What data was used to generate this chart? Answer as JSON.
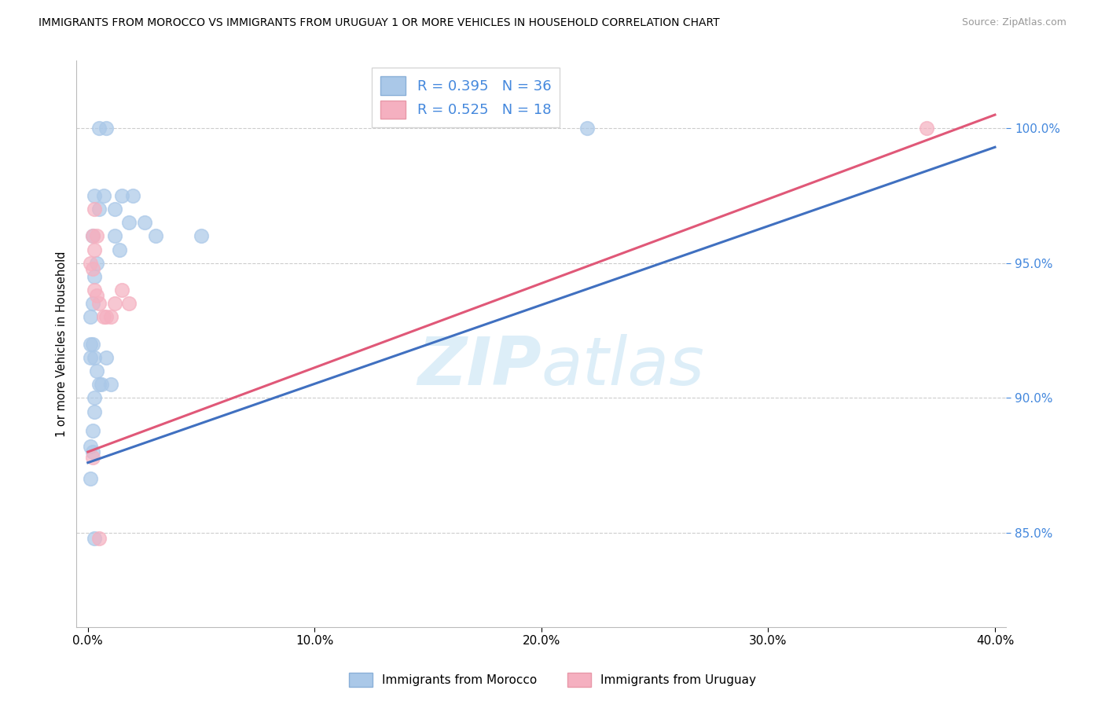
{
  "title": "IMMIGRANTS FROM MOROCCO VS IMMIGRANTS FROM URUGUAY 1 OR MORE VEHICLES IN HOUSEHOLD CORRELATION CHART",
  "source": "Source: ZipAtlas.com",
  "xlabel_ticks": [
    "0.0%",
    "10.0%",
    "20.0%",
    "30.0%",
    "40.0%"
  ],
  "xlabel_tick_vals": [
    0.0,
    0.1,
    0.2,
    0.3,
    0.4
  ],
  "ylabel": "1 or more Vehicles in Household",
  "ylabel_ticks": [
    "85.0%",
    "90.0%",
    "95.0%",
    "100.0%"
  ],
  "ylabel_tick_vals": [
    0.85,
    0.9,
    0.95,
    1.0
  ],
  "xlim": [
    -0.005,
    0.405
  ],
  "ylim": [
    0.815,
    1.025
  ],
  "morocco_R": 0.395,
  "morocco_N": 36,
  "uruguay_R": 0.525,
  "uruguay_N": 18,
  "morocco_color": "#aac8e8",
  "uruguay_color": "#f5b0c0",
  "morocco_line_color": "#4070c0",
  "uruguay_line_color": "#e05878",
  "watermark_zip": "ZIP",
  "watermark_atlas": "atlas",
  "watermark_color": "#ddeef8",
  "morocco_x": [
    0.005,
    0.008,
    0.005,
    0.003,
    0.002,
    0.012,
    0.014,
    0.012,
    0.007,
    0.004,
    0.003,
    0.002,
    0.001,
    0.001,
    0.001,
    0.002,
    0.003,
    0.004,
    0.005,
    0.006,
    0.008,
    0.01,
    0.015,
    0.018,
    0.02,
    0.025,
    0.03,
    0.003,
    0.003,
    0.002,
    0.001,
    0.05,
    0.002,
    0.001,
    0.22,
    0.003
  ],
  "morocco_y": [
    1.0,
    1.0,
    0.97,
    0.975,
    0.96,
    0.96,
    0.955,
    0.97,
    0.975,
    0.95,
    0.945,
    0.935,
    0.93,
    0.92,
    0.915,
    0.92,
    0.915,
    0.91,
    0.905,
    0.905,
    0.915,
    0.905,
    0.975,
    0.965,
    0.975,
    0.965,
    0.96,
    0.9,
    0.895,
    0.888,
    0.882,
    0.96,
    0.88,
    0.87,
    1.0,
    0.848
  ],
  "uruguay_x": [
    0.003,
    0.004,
    0.003,
    0.002,
    0.001,
    0.002,
    0.003,
    0.004,
    0.005,
    0.007,
    0.008,
    0.01,
    0.015,
    0.012,
    0.018,
    0.005,
    0.37,
    0.002
  ],
  "uruguay_y": [
    0.97,
    0.96,
    0.955,
    0.96,
    0.95,
    0.948,
    0.94,
    0.938,
    0.935,
    0.93,
    0.93,
    0.93,
    0.94,
    0.935,
    0.935,
    0.848,
    1.0,
    0.878
  ],
  "morocco_line_x": [
    0.0,
    0.4
  ],
  "morocco_line_y": [
    0.876,
    0.993
  ],
  "uruguay_line_x": [
    0.0,
    0.4
  ],
  "uruguay_line_y": [
    0.88,
    1.005
  ]
}
